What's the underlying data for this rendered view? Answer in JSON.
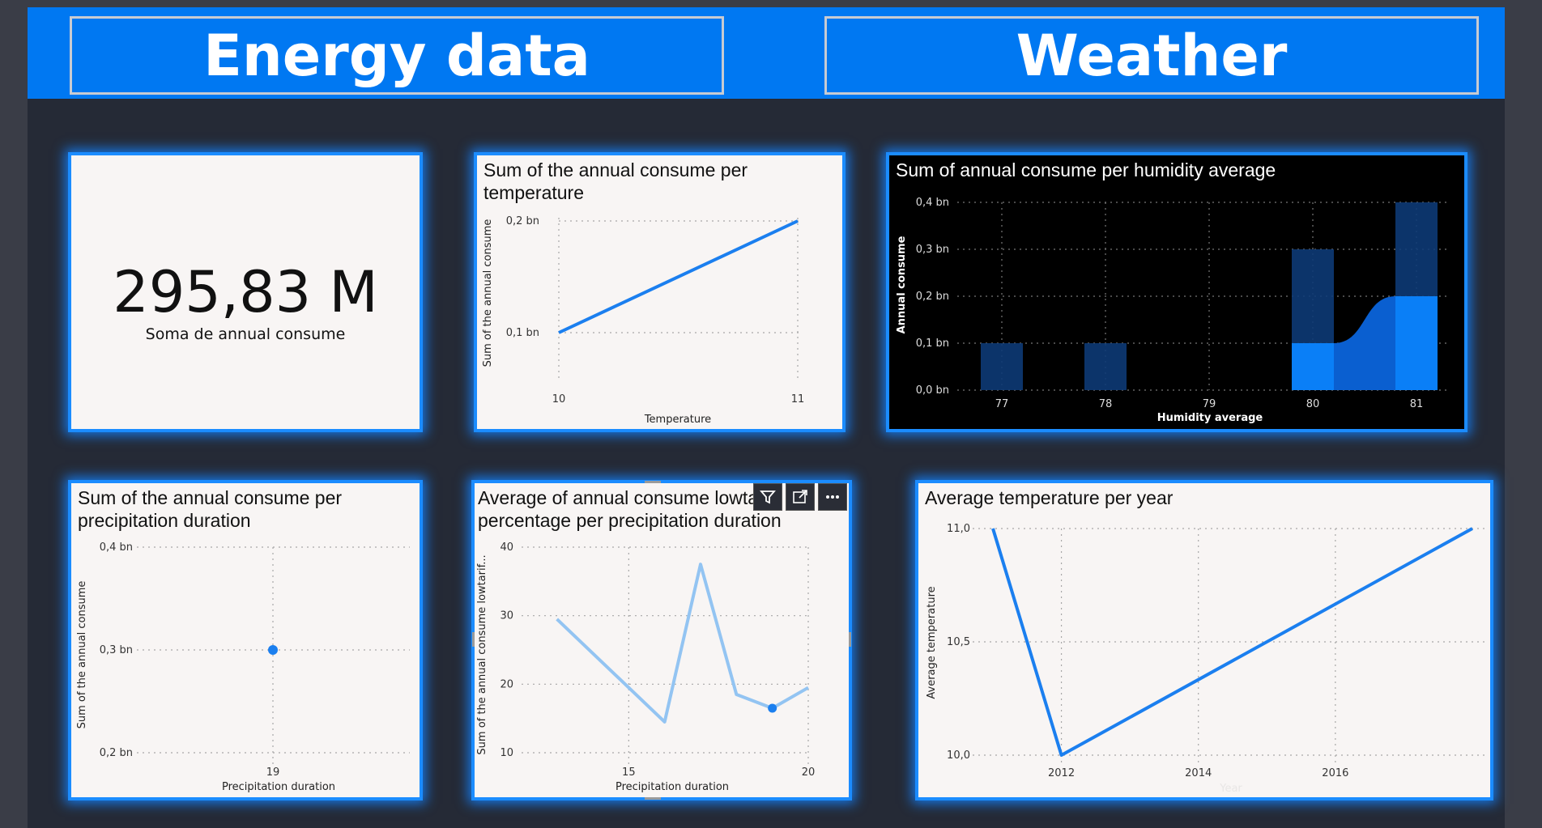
{
  "header": {
    "energy_title": "Energy data",
    "weather_title": "Weather"
  },
  "kpi": {
    "value": "295,83 M",
    "label": "Soma de annual consume"
  },
  "charts": {
    "temp": {
      "title": "Sum of the annual consume per temperature"
    },
    "humidity": {
      "title": "Sum of annual consume per humidity average"
    },
    "precip": {
      "title": "Sum of the annual consume per precipitation duration"
    },
    "lowtarif": {
      "title": "Average of annual consume lowtarif percentage per precipitation duration"
    },
    "year": {
      "title": "Average temperature per year"
    }
  },
  "colors": {
    "accent": "#0078f2",
    "canvas": "#252a36",
    "line": "#1b7fef",
    "light_line": "#93c4f2"
  },
  "visual_header_icons": [
    "filter-icon",
    "focus-mode-icon",
    "more-options-icon"
  ],
  "chart_data": [
    {
      "id": "temp",
      "type": "line",
      "title": "Sum of the annual consume per temperature",
      "xlabel": "Temperature",
      "ylabel": "Sum of the annual consume",
      "x": [
        10,
        11
      ],
      "y": [
        0.1,
        0.2
      ],
      "ylim": [
        0.1,
        0.2
      ],
      "xticks": [
        10,
        11
      ],
      "yticks": [
        {
          "v": 0.2,
          "label": "0,2 bn"
        },
        {
          "v": 0.1,
          "label": "0,1 bn"
        }
      ],
      "grid": true
    },
    {
      "id": "humidity",
      "type": "bar",
      "title": "Sum of annual consume per humidity average",
      "xlabel": "Humidity average",
      "ylabel": "Annual consume",
      "categories": [
        77,
        78,
        79,
        80,
        81
      ],
      "series": [
        {
          "values": [
            0.1,
            0.1,
            0,
            0.3,
            0.4
          ]
        },
        {
          "values": [
            0,
            0,
            0,
            0.1,
            0.2
          ]
        }
      ],
      "ylim": [
        0,
        0.4
      ],
      "yticks": [
        {
          "v": 0.4,
          "label": "0,4 bn"
        },
        {
          "v": 0.3,
          "label": "0,3 bn"
        },
        {
          "v": 0.2,
          "label": "0,2 bn"
        },
        {
          "v": 0.1,
          "label": "0,1 bn"
        },
        {
          "v": 0,
          "label": "0,0 bn"
        }
      ],
      "grid": true
    },
    {
      "id": "precip",
      "type": "scatter",
      "title": "Sum of the annual consume per precipitation duration",
      "xlabel": "Precipitation duration",
      "ylabel": "Sum of the annual consume",
      "x": [
        19
      ],
      "y": [
        0.3
      ],
      "ylim": [
        0.2,
        0.4
      ],
      "xticks": [
        19
      ],
      "yticks": [
        {
          "v": 0.4,
          "label": "0,4 bn"
        },
        {
          "v": 0.3,
          "label": "0,3 bn"
        },
        {
          "v": 0.2,
          "label": "0,2 bn"
        }
      ],
      "grid": true
    },
    {
      "id": "lowtarif",
      "type": "line",
      "title": "Average of annual consume lowtarif percentage per precipitation duration",
      "xlabel": "Precipitation duration",
      "ylabel": "Sum of the annual consume lowtarif...",
      "x": [
        13,
        16,
        17,
        18,
        19,
        20
      ],
      "y": [
        29.5,
        14.5,
        37.5,
        18.5,
        16.5,
        19.5
      ],
      "highlight_x": 19,
      "ylim": [
        10,
        40
      ],
      "xlim": [
        11,
        20
      ],
      "xticks": [
        15,
        20
      ],
      "yticks": [
        {
          "v": 40,
          "label": "40"
        },
        {
          "v": 30,
          "label": "30"
        },
        {
          "v": 20,
          "label": "20"
        },
        {
          "v": 10,
          "label": "10"
        }
      ],
      "grid": true
    },
    {
      "id": "year",
      "type": "line",
      "title": "Average temperature per year",
      "xlabel": "Year",
      "ylabel": "Average temperature",
      "x": [
        2011,
        2012,
        2018
      ],
      "y": [
        11.0,
        10.0,
        11.0
      ],
      "ylim": [
        10.0,
        11.0
      ],
      "xlim": [
        2011,
        2018
      ],
      "xticks": [
        2012,
        2014,
        2016
      ],
      "yticks": [
        {
          "v": 11.0,
          "label": "11,0"
        },
        {
          "v": 10.5,
          "label": "10,5"
        },
        {
          "v": 10.0,
          "label": "10,0"
        }
      ],
      "grid": true
    }
  ]
}
